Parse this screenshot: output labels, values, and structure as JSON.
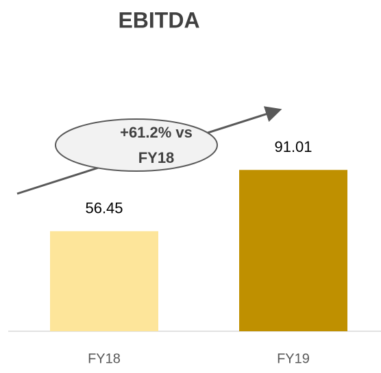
{
  "chart_data": {
    "type": "bar",
    "title": "EBITDA",
    "categories": [
      "FY18",
      "FY19"
    ],
    "values": [
      56.45,
      91.01
    ],
    "colors": [
      "#fde59a",
      "#bf9000"
    ],
    "annotation": [
      "+61.2% vs",
      "FY18"
    ],
    "ylim": [
      0,
      100
    ]
  }
}
